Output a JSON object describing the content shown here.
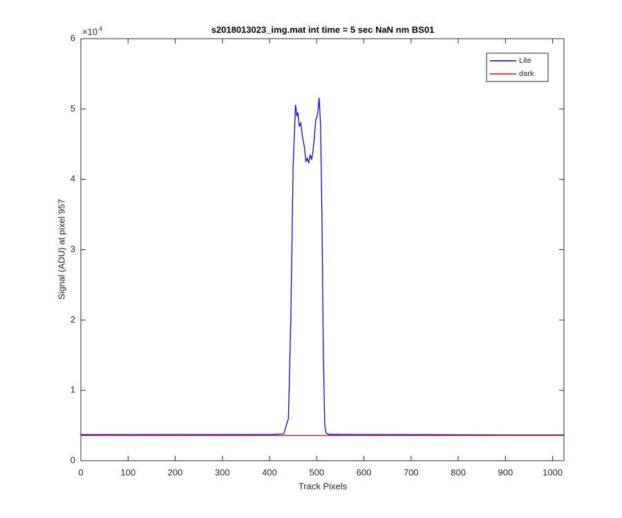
{
  "chart_data": {
    "type": "line",
    "title": "s2018013023_img.mat int time = 5 sec  NaN nm BS01",
    "x_label": "Track Pixels",
    "y_label": "Signal (ADU) at pixel 957",
    "y_multiplier": {
      "base": "×10",
      "exponent": "4"
    },
    "xlim": [
      0,
      1024
    ],
    "xticks": [
      0,
      100,
      200,
      300,
      400,
      500,
      600,
      700,
      800,
      900,
      1000
    ],
    "ylim": [
      0,
      60000
    ],
    "yticks": [
      0,
      {
        "value": 10000,
        "label": "1"
      },
      {
        "value": 20000,
        "label": "2"
      },
      {
        "value": 30000,
        "label": "3"
      },
      {
        "value": 40000,
        "label": "4"
      },
      {
        "value": 50000,
        "label": "5"
      },
      {
        "value": 60000,
        "label": "6"
      }
    ],
    "grid": false,
    "legend": "top-right",
    "series": [
      {
        "name": "Lite",
        "color": "#0000ff",
        "x": [
          0,
          100,
          200,
          300,
          400,
          430,
          440,
          445,
          450,
          455,
          458,
          460,
          463,
          466,
          470,
          474,
          477,
          480,
          483,
          486,
          489,
          492,
          495,
          498,
          501,
          503,
          505,
          508,
          511,
          514,
          517,
          520,
          525,
          600,
          700,
          800,
          900,
          1024
        ],
        "values": [
          3700,
          3710,
          3720,
          3700,
          3720,
          3800,
          6000,
          20000,
          42000,
          50600,
          49000,
          49500,
          47500,
          48000,
          46000,
          44500,
          42500,
          43000,
          42300,
          43500,
          42800,
          44000,
          46000,
          48500,
          49000,
          50000,
          51600,
          48000,
          35000,
          15000,
          5000,
          3900,
          3750,
          3720,
          3700,
          3680,
          3660,
          3650
        ]
      },
      {
        "name": "dark",
        "color": "#ff0000",
        "x": [
          0,
          256,
          512,
          768,
          1024
        ],
        "values": [
          3600,
          3600,
          3600,
          3600,
          3600
        ]
      }
    ]
  }
}
